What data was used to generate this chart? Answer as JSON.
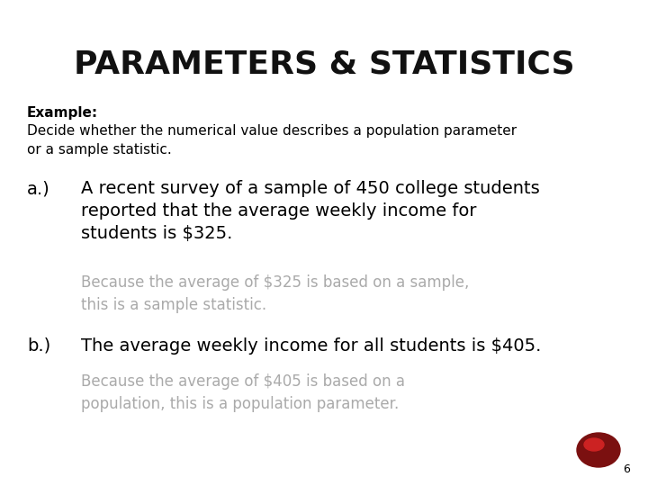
{
  "background_color": "#ffffff",
  "title": "PARAMETERS & STATISTICS",
  "title_fontsize": 26,
  "title_color": "#111111",
  "example_label": "Example:",
  "example_fontsize": 11,
  "intro_text": "Decide whether the numerical value describes a population parameter\nor a sample statistic.",
  "intro_fontsize": 11,
  "item_a_label": "a.)",
  "item_a_fontsize": 14,
  "item_a_text": "A recent survey of a sample of 450 college students\nreported that the average weekly income for\nstudents is $325.",
  "item_a_text_fontsize": 14,
  "answer_a_text": "Because the average of $325 is based on a sample,\nthis is a sample statistic.",
  "answer_a_fontsize": 12,
  "answer_a_color": "#aaaaaa",
  "item_b_label": "b.)",
  "item_b_fontsize": 14,
  "item_b_text": "The average weekly income for all students is $405.",
  "item_b_text_fontsize": 14,
  "answer_b_text": "Because the average of $405 is based on a\npopulation, this is a population parameter.",
  "answer_b_fontsize": 12,
  "answer_b_color": "#aaaaaa",
  "page_number": "6",
  "page_number_fontsize": 9,
  "circle_outer_color": "#7B1010",
  "circle_inner_color": "#CC2222"
}
